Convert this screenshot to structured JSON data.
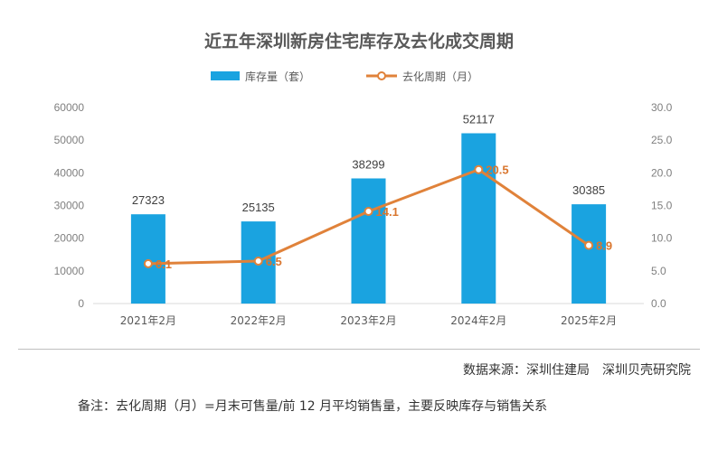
{
  "chart_data": {
    "type": "bar+line",
    "title": "近五年深圳新房住宅库存及去化成交周期",
    "categories": [
      "2021年2月",
      "2022年2月",
      "2023年2月",
      "2024年2月",
      "2025年2月"
    ],
    "series": [
      {
        "name": "库存量（套）",
        "type": "bar",
        "axis": "left",
        "color": "#1aa3e0",
        "values": [
          27323,
          25135,
          38299,
          52117,
          30385
        ],
        "labels": [
          "27323",
          "25135",
          "38299",
          "52117",
          "30385"
        ]
      },
      {
        "name": "去化周期（月）",
        "type": "line",
        "axis": "right",
        "color": "#e0823a",
        "values": [
          6.1,
          6.5,
          14.1,
          20.5,
          8.9
        ],
        "labels": [
          "6.1",
          "6.5",
          "14.1",
          "20.5",
          "8.9"
        ]
      }
    ],
    "y_left": {
      "lim": [
        0,
        60000
      ],
      "ticks": [
        "0",
        "10000",
        "20000",
        "30000",
        "40000",
        "50000",
        "60000"
      ]
    },
    "y_right": {
      "lim": [
        0,
        30
      ],
      "ticks": [
        "0.0",
        "5.0",
        "10.0",
        "15.0",
        "20.0",
        "25.0",
        "30.0"
      ]
    },
    "grid": false,
    "legend_position": "top-center"
  },
  "footer": {
    "source": "数据来源：深圳住建局　深圳贝壳研究院",
    "note": "备注：去化周期（月）=月末可售量/前 12 月平均销售量，主要反映库存与销售关系"
  }
}
